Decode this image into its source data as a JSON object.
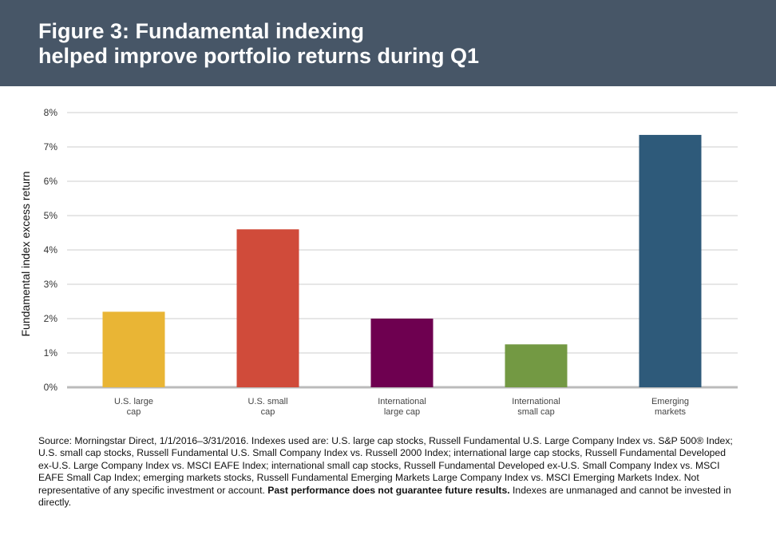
{
  "header": {
    "title_line1": "Figure 3: Fundamental indexing",
    "title_line2": "helped improve portfolio returns during Q1"
  },
  "colors": {
    "header_bg": "#475667",
    "grid": "#cccccc",
    "axis": "#bbbbbb"
  },
  "chart_data": {
    "type": "bar",
    "title": "",
    "ylabel": "Fundamental index excess return",
    "xlabel": "",
    "ylim": [
      0,
      8
    ],
    "y_ticks": [
      0,
      1,
      2,
      3,
      4,
      5,
      6,
      7,
      8
    ],
    "y_tick_labels": [
      "0%",
      "1%",
      "2%",
      "3%",
      "4%",
      "5%",
      "6%",
      "7%",
      "8%"
    ],
    "grid": true,
    "categories": [
      [
        "U.S. large",
        "cap"
      ],
      [
        "U.S. small",
        "cap"
      ],
      [
        "International",
        "large cap"
      ],
      [
        "International",
        "small cap"
      ],
      [
        "Emerging",
        "markets"
      ]
    ],
    "values": [
      2.2,
      4.6,
      2.0,
      1.25,
      7.35
    ],
    "bar_colors": [
      "#e9b535",
      "#d04b3a",
      "#6e0050",
      "#739943",
      "#2e5a7a"
    ]
  },
  "source": {
    "text": "Source: Morningstar Direct, 1/1/2016–3/31/2016. Indexes used are: U.S. large cap stocks, Russell Fundamental U.S. Large Company Index vs. S&P 500® Index; U.S. small cap stocks, Russell Fundamental U.S. Small Company Index vs. Russell 2000 Index; international large cap stocks, Russell Fundamental Developed ex-U.S. Large Company Index vs. MSCI EAFE Index; international small cap stocks, Russell Fundamental Developed ex-U.S. Small Company Index vs. MSCI EAFE Small Cap Index; emerging markets stocks, Russell Fundamental Emerging Markets Large Company Index vs. MSCI Emerging Markets Index. Not representative of any specific investment or account. ",
    "bold": "Past performance does not guarantee future results.",
    "tail": " Indexes are unmanaged and cannot be invested in directly."
  }
}
